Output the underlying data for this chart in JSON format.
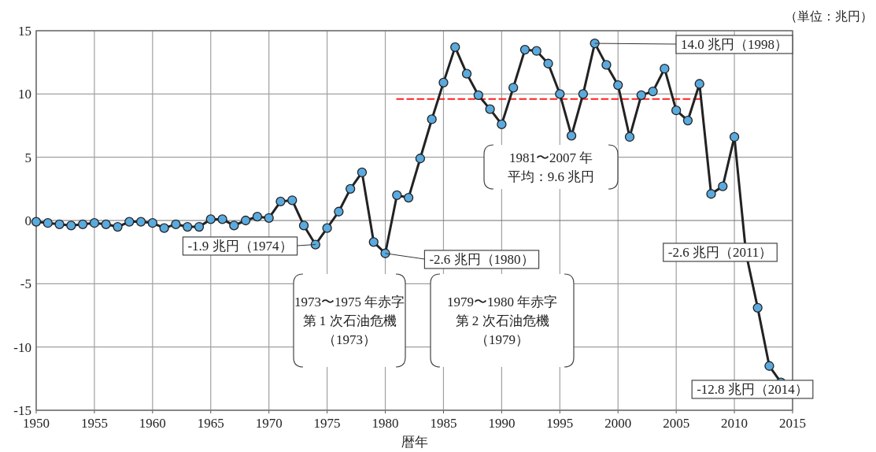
{
  "chart_data": {
    "type": "line",
    "xlabel": "暦年",
    "x": [
      1950,
      1951,
      1952,
      1953,
      1954,
      1955,
      1956,
      1957,
      1958,
      1959,
      1960,
      1961,
      1962,
      1963,
      1964,
      1965,
      1966,
      1967,
      1968,
      1969,
      1970,
      1971,
      1972,
      1973,
      1974,
      1975,
      1976,
      1977,
      1978,
      1979,
      1980,
      1981,
      1982,
      1983,
      1984,
      1985,
      1986,
      1987,
      1988,
      1989,
      1990,
      1991,
      1992,
      1993,
      1994,
      1995,
      1996,
      1997,
      1998,
      1999,
      2000,
      2001,
      2002,
      2003,
      2004,
      2005,
      2006,
      2007,
      2008,
      2009,
      2010,
      2011,
      2012,
      2013,
      2014
    ],
    "series": [
      {
        "color": "#5aaade",
        "marker": "circle",
        "values": [
          -0.1,
          -0.2,
          -0.3,
          -0.4,
          -0.3,
          -0.2,
          -0.3,
          -0.5,
          -0.1,
          -0.1,
          -0.2,
          -0.6,
          -0.3,
          -0.5,
          -0.5,
          0.1,
          0.1,
          -0.4,
          0.0,
          0.3,
          0.2,
          1.5,
          1.6,
          -0.4,
          -1.9,
          -0.6,
          0.7,
          2.5,
          3.8,
          -1.7,
          -2.6,
          2.0,
          1.8,
          4.9,
          8.0,
          10.9,
          13.7,
          11.6,
          9.9,
          8.8,
          7.6,
          10.5,
          13.5,
          13.4,
          12.4,
          10.0,
          6.7,
          10.0,
          14.0,
          12.3,
          10.7,
          6.6,
          9.9,
          10.2,
          12.0,
          8.7,
          7.9,
          10.8,
          2.1,
          2.7,
          6.6,
          -2.6,
          -6.9,
          -11.5,
          -12.8
        ]
      },
      {
        "type": "line",
        "color": "#ff2020",
        "line_style": "dashed",
        "marker": "none",
        "x": [
          1981,
          2007
        ],
        "values": [
          9.6,
          9.6
        ]
      }
    ],
    "xlim": [
      1950,
      2015
    ],
    "xticks": [
      1950,
      1955,
      1960,
      1965,
      1970,
      1975,
      1980,
      1985,
      1990,
      1995,
      2000,
      2005,
      2010,
      2015
    ],
    "ylim": [
      -15,
      15
    ],
    "yticks": [
      -15,
      -10,
      -5,
      0,
      5,
      10,
      15
    ],
    "grid": true,
    "annotations": [
      {
        "text": "-1.9 兆円（1974）",
        "x": 1974,
        "y": -1.9
      },
      {
        "text": "-2.6 兆円（1980）",
        "x": 1980,
        "y": -2.6
      },
      {
        "text": "14.0 兆円（1998）",
        "x": 1998,
        "y": 14.0
      },
      {
        "text": "-2.6 兆円（2011）",
        "x": 2011,
        "y": -2.6
      },
      {
        "text": "-12.8 兆円（2014）",
        "x": 2014,
        "y": -12.8
      },
      "1973〜1975 年赤字",
      "第 1 次石油危機",
      "（1973）",
      "1979〜1980 年赤字",
      "第 2 次石油危機",
      "（1979）",
      "1981〜2007 年",
      "平均：9.6 兆円",
      "（単位：兆円）"
    ]
  }
}
